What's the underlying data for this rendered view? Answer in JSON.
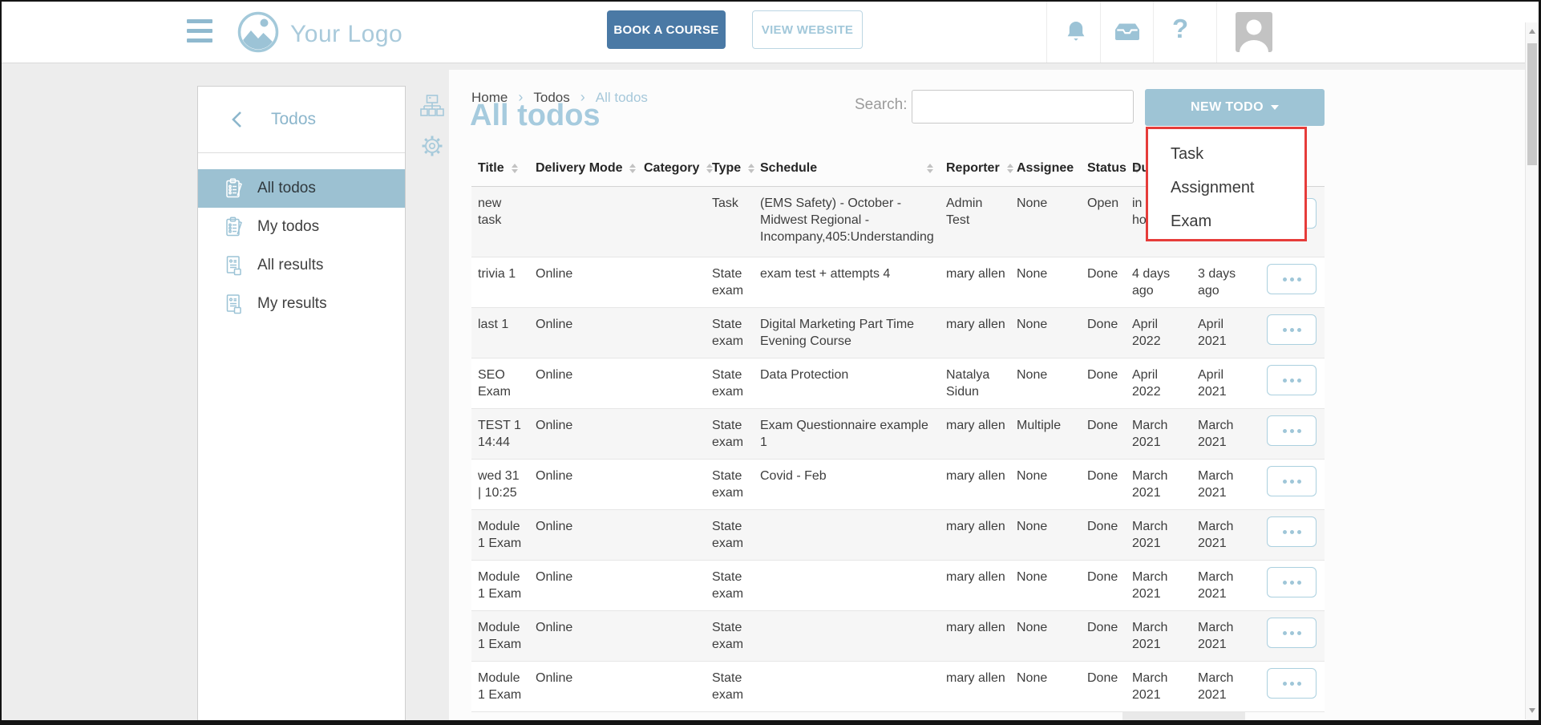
{
  "header": {
    "logo_text": "Your Logo",
    "book_course_label": "BOOK A COURSE",
    "view_website_label": "VIEW WEBSITE"
  },
  "sidebar": {
    "title": "Todos",
    "items": [
      {
        "label": "All todos",
        "icon": "todos-clipboard-icon",
        "selected": true
      },
      {
        "label": "My todos",
        "icon": "todos-clipboard-icon",
        "selected": false
      },
      {
        "label": "All results",
        "icon": "results-document-icon",
        "selected": false
      },
      {
        "label": "My results",
        "icon": "results-document-icon",
        "selected": false
      }
    ]
  },
  "breadcrumb": [
    "Home",
    "Todos",
    "All todos"
  ],
  "main": {
    "page_title": "All todos",
    "search_label": "Search:",
    "search_value": "",
    "new_todo_label": "NEW TODO",
    "new_todo_menu": [
      "Task",
      "Assignment",
      "Exam"
    ]
  },
  "table": {
    "columns": [
      {
        "label": "Title",
        "sortable": true
      },
      {
        "label": "Delivery Mode",
        "sortable": true
      },
      {
        "label": "Category",
        "sortable": true
      },
      {
        "label": "Type",
        "sortable": true
      },
      {
        "label": "Schedule",
        "sortable": true
      },
      {
        "label": "Reporter",
        "sortable": true
      },
      {
        "label": "Assignee",
        "sortable": false
      },
      {
        "label": "Status",
        "sortable": true
      },
      {
        "label": "Due date",
        "sortable": false
      },
      {
        "label": "",
        "sortable": false
      }
    ],
    "rows": [
      {
        "title": "new task",
        "delivery_mode": "",
        "category": "",
        "type": "Task",
        "schedule": "(EMS Safety) - October - Midwest Regional - Incompany,405:Understanding",
        "reporter": "Admin Test",
        "assignee": "None",
        "status": "Open",
        "due": "in hours",
        "extra": ""
      },
      {
        "title": "trivia 1",
        "delivery_mode": "Online",
        "category": "",
        "type": "State exam",
        "schedule": "exam test + attempts 4",
        "reporter": "mary allen",
        "assignee": "None",
        "status": "Done",
        "due": "4 days ago",
        "extra": "3 days ago"
      },
      {
        "title": "last 1",
        "delivery_mode": "Online",
        "category": "",
        "type": "State exam",
        "schedule": "Digital Marketing Part Time Evening Course",
        "reporter": "mary allen",
        "assignee": "None",
        "status": "Done",
        "due": "April 2022",
        "extra": "April 2021"
      },
      {
        "title": "SEO Exam",
        "delivery_mode": "Online",
        "category": "",
        "type": "State exam",
        "schedule": "Data Protection",
        "reporter": "Natalya Sidun",
        "assignee": "None",
        "status": "Done",
        "due": "April 2022",
        "extra": "April 2021"
      },
      {
        "title": "TEST 1 14:44",
        "delivery_mode": "Online",
        "category": "",
        "type": "State exam",
        "schedule": "Exam Questionnaire example 1",
        "reporter": "mary allen",
        "assignee": "Multiple",
        "status": "Done",
        "due": "March 2021",
        "extra": "March 2021"
      },
      {
        "title": "wed 31 | 10:25",
        "delivery_mode": "Online",
        "category": "",
        "type": "State exam",
        "schedule": "Covid - Feb",
        "reporter": "mary allen",
        "assignee": "None",
        "status": "Done",
        "due": "March 2021",
        "extra": "March 2021"
      },
      {
        "title": "Module 1 Exam",
        "delivery_mode": "Online",
        "category": "",
        "type": "State exam",
        "schedule": "",
        "reporter": "mary allen",
        "assignee": "None",
        "status": "Done",
        "due": "March 2021",
        "extra": "March 2021"
      },
      {
        "title": "Module 1 Exam",
        "delivery_mode": "Online",
        "category": "",
        "type": "State exam",
        "schedule": "",
        "reporter": "mary allen",
        "assignee": "None",
        "status": "Done",
        "due": "March 2021",
        "extra": "March 2021"
      },
      {
        "title": "Module 1 Exam",
        "delivery_mode": "Online",
        "category": "",
        "type": "State exam",
        "schedule": "",
        "reporter": "mary allen",
        "assignee": "None",
        "status": "Done",
        "due": "March 2021",
        "extra": "March 2021"
      },
      {
        "title": "Module 1 Exam",
        "delivery_mode": "Online",
        "category": "",
        "type": "State exam",
        "schedule": "",
        "reporter": "mary allen",
        "assignee": "None",
        "status": "Done",
        "due": "March 2021",
        "extra": "March 2021"
      }
    ]
  },
  "colors": {
    "accent_light_blue": "#9cc3d6",
    "accent_dark_blue": "#4a79a5",
    "selected_item_bg": "#9cc1d2",
    "page_title_blue": "#a6cbde",
    "dropdown_border_red": "#e63c3a",
    "row_stripe": "#f6f6f6"
  }
}
